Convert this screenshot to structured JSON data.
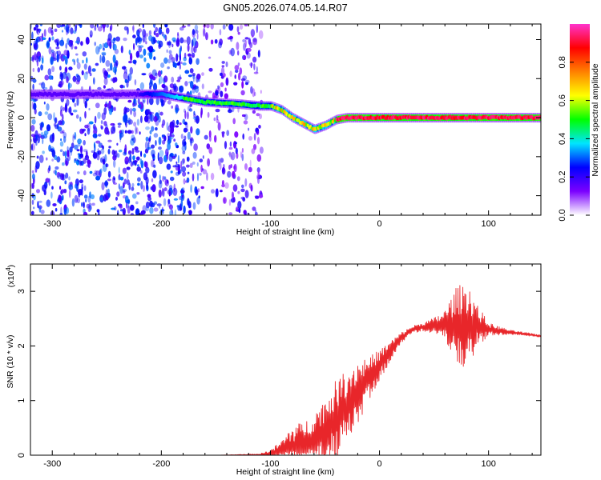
{
  "title": "GN05.2026.074.05.14.R07",
  "chart_data": [
    {
      "type": "heatmap",
      "name": "spectrogram",
      "xlabel": "Height of straight line (km)",
      "ylabel": "Frequency (Hz)",
      "xlim": [
        -320,
        148
      ],
      "ylim": [
        -50,
        48
      ],
      "xticks": [
        -300,
        -200,
        -100,
        0,
        100
      ],
      "yticks": [
        -40,
        -20,
        0,
        20,
        40
      ],
      "xtick_labels": [
        "-300",
        "-200",
        "-100",
        "0",
        "100"
      ],
      "ytick_labels": [
        "-40",
        "-20",
        "0",
        "20",
        "40"
      ],
      "noise_region_km": [
        -320,
        -108
      ],
      "ridge": {
        "x": [
          -320,
          -200,
          -180,
          -160,
          -130,
          -110,
          -100,
          -90,
          -80,
          -70,
          -60,
          -55,
          -50,
          -40,
          -30,
          -20,
          0,
          40,
          80,
          148
        ],
        "freq": [
          12,
          12,
          10,
          8,
          7,
          6,
          6,
          4,
          0,
          -3,
          -6,
          -5,
          -4,
          -1,
          0,
          0,
          0,
          0,
          0,
          0
        ]
      },
      "colorbar": {
        "label": "Normalized spectral amplitude",
        "range": [
          0,
          1
        ],
        "ticks": [
          0.0,
          0.2,
          0.4,
          0.6,
          0.8
        ],
        "tick_labels": [
          "0.0",
          "0.2",
          "0.4",
          "0.6",
          "0.8"
        ],
        "colormap": [
          "#ffffff",
          "#7b00ff",
          "#0000ff",
          "#00e5ff",
          "#00ff00",
          "#ffff00",
          "#ff8000",
          "#ff0000",
          "#ff33cc"
        ]
      }
    },
    {
      "type": "line",
      "name": "snr",
      "xlabel": "Height of straight line (km)",
      "ylabel": "SNR (10 * v/v)",
      "y_multiplier": "(x10",
      "y_multiplier_exp": "4",
      "y_multiplier_close": ")",
      "xlim": [
        -320,
        148
      ],
      "ylim": [
        0,
        3.5
      ],
      "xticks": [
        -300,
        -200,
        -100,
        0,
        100
      ],
      "yticks": [
        0,
        1,
        2,
        3
      ],
      "xtick_labels": [
        "-300",
        "-200",
        "-100",
        "0",
        "100"
      ],
      "ytick_labels": [
        "0",
        "1",
        "2",
        "3"
      ],
      "color": "#e8262a",
      "envelope": {
        "x": [
          -320,
          -150,
          -110,
          -100,
          -90,
          -80,
          -70,
          -60,
          -50,
          -40,
          -30,
          -20,
          -10,
          0,
          10,
          20,
          30,
          40,
          50,
          60,
          70,
          80,
          90,
          100,
          120,
          148
        ],
        "base": [
          0.0,
          0.0,
          0.01,
          0.03,
          0.07,
          0.12,
          0.2,
          0.3,
          0.45,
          0.65,
          0.9,
          1.15,
          1.4,
          1.65,
          1.9,
          2.15,
          2.3,
          2.35,
          2.37,
          2.38,
          2.38,
          2.38,
          2.36,
          2.3,
          2.25,
          2.18
        ],
        "amp": [
          0.0,
          0.0,
          0.02,
          0.08,
          0.25,
          0.55,
          0.5,
          0.6,
          0.75,
          0.9,
          0.85,
          0.75,
          0.5,
          0.35,
          0.25,
          0.12,
          0.08,
          0.1,
          0.18,
          0.35,
          0.85,
          1.05,
          0.5,
          0.15,
          0.05,
          0.03
        ]
      }
    }
  ]
}
